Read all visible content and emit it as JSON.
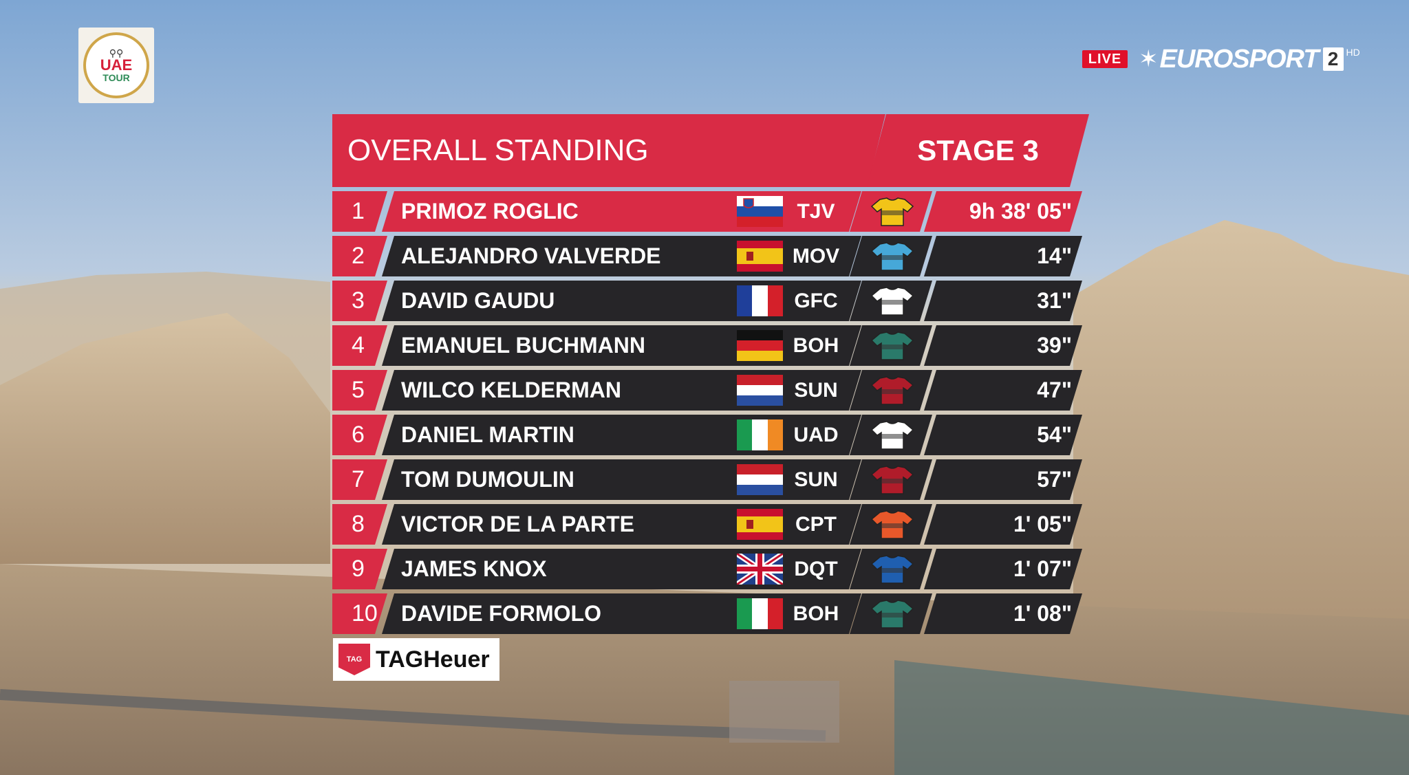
{
  "event_logo": {
    "line1": "UAE",
    "line2": "TOUR"
  },
  "live_badge": "LIVE",
  "broadcaster": {
    "name": "EUROSPORT",
    "channel": "2",
    "quality": "HD"
  },
  "standings": {
    "title": "OVERALL STANDING",
    "stage": "STAGE 3",
    "rows": [
      {
        "rank": "1",
        "rider": "PRIMOZ ROGLIC",
        "team": "TJV",
        "time": "9h 38' 05\"",
        "flag": "slovenia",
        "jersey": "#f2c418"
      },
      {
        "rank": "2",
        "rider": "ALEJANDRO VALVERDE",
        "team": "MOV",
        "time": "14\"",
        "flag": "spain",
        "jersey": "#46a8d8"
      },
      {
        "rank": "3",
        "rider": "DAVID GAUDU",
        "team": "GFC",
        "time": "31\"",
        "flag": "france",
        "jersey": "#ffffff"
      },
      {
        "rank": "4",
        "rider": "EMANUEL BUCHMANN",
        "team": "BOH",
        "time": "39\"",
        "flag": "germany",
        "jersey": "#2a7a6a"
      },
      {
        "rank": "5",
        "rider": "WILCO KELDERMAN",
        "team": "SUN",
        "time": "47\"",
        "flag": "netherlands",
        "jersey": "#b01c2a"
      },
      {
        "rank": "6",
        "rider": "DANIEL MARTIN",
        "team": "UAD",
        "time": "54\"",
        "flag": "ireland",
        "jersey": "#ffffff"
      },
      {
        "rank": "7",
        "rider": "TOM DUMOULIN",
        "team": "SUN",
        "time": "57\"",
        "flag": "netherlands",
        "jersey": "#b01c2a"
      },
      {
        "rank": "8",
        "rider": "VICTOR DE LA PARTE",
        "team": "CPT",
        "time": "1' 05\"",
        "flag": "spain",
        "jersey": "#e8582a"
      },
      {
        "rank": "9",
        "rider": "JAMES KNOX",
        "team": "DQT",
        "time": "1' 07\"",
        "flag": "uk",
        "jersey": "#1f5fb0"
      },
      {
        "rank": "10",
        "rider": "DAVIDE FORMOLO",
        "team": "BOH",
        "time": "1' 08\"",
        "flag": "italy",
        "jersey": "#2a7a6a"
      }
    ]
  },
  "sponsor": {
    "badge": "TAG",
    "name": "TAGHeuer"
  },
  "colors": {
    "accent": "#d92b45",
    "row_bg": "#262528"
  }
}
